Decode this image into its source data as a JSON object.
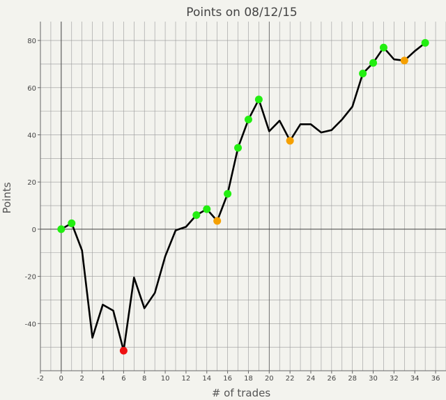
{
  "chart_data": {
    "type": "line",
    "title": "Points on 08/12/15",
    "xlabel": "# of trades",
    "ylabel": "Points",
    "xlim": [
      -2,
      37
    ],
    "ylim": [
      -60,
      88
    ],
    "xticks": [
      -2,
      0,
      2,
      4,
      6,
      8,
      10,
      12,
      14,
      16,
      18,
      20,
      22,
      24,
      26,
      28,
      30,
      32,
      34,
      36
    ],
    "yticks": [
      -40,
      -20,
      0,
      20,
      40,
      60,
      80
    ],
    "grid": true,
    "colors": {
      "line": "#000000",
      "win": "#22ee11",
      "loss": "#ee1111",
      "scratch": "#f5a000",
      "grid": "#999999",
      "background": "#f3f3ee"
    },
    "series": [
      {
        "x": [
          0,
          1,
          2,
          3,
          4,
          5,
          6,
          7,
          8,
          9,
          10,
          11,
          12,
          13,
          14,
          15,
          16,
          17,
          18,
          19,
          20,
          21,
          22,
          23,
          24,
          25,
          26,
          27,
          28,
          29,
          30,
          31,
          32,
          33,
          34,
          35
        ],
        "y": [
          0,
          2.5,
          -9,
          -46,
          -32,
          -34.5,
          -51.5,
          -20.5,
          -33.5,
          -27,
          -11.5,
          -0.5,
          1,
          6,
          8.5,
          3.5,
          15,
          34.5,
          46.5,
          55,
          41.5,
          46,
          37.5,
          44.5,
          44.5,
          41,
          42,
          46.5,
          52,
          66,
          70.5,
          77,
          72,
          71.5,
          75.5,
          79
        ]
      }
    ],
    "markers": [
      {
        "x": 0,
        "y": 0,
        "kind": "win"
      },
      {
        "x": 1,
        "y": 2.5,
        "kind": "win"
      },
      {
        "x": 6,
        "y": -51.5,
        "kind": "loss"
      },
      {
        "x": 13,
        "y": 6,
        "kind": "win"
      },
      {
        "x": 14,
        "y": 8.5,
        "kind": "win"
      },
      {
        "x": 15,
        "y": 3.5,
        "kind": "scratch"
      },
      {
        "x": 16,
        "y": 15,
        "kind": "win"
      },
      {
        "x": 17,
        "y": 34.5,
        "kind": "win"
      },
      {
        "x": 18,
        "y": 46.5,
        "kind": "win"
      },
      {
        "x": 19,
        "y": 55,
        "kind": "win"
      },
      {
        "x": 22,
        "y": 37.5,
        "kind": "scratch"
      },
      {
        "x": 29,
        "y": 66,
        "kind": "win"
      },
      {
        "x": 30,
        "y": 70.5,
        "kind": "win"
      },
      {
        "x": 31,
        "y": 77,
        "kind": "win"
      },
      {
        "x": 33,
        "y": 71.5,
        "kind": "scratch"
      },
      {
        "x": 35,
        "y": 79,
        "kind": "win"
      }
    ]
  }
}
